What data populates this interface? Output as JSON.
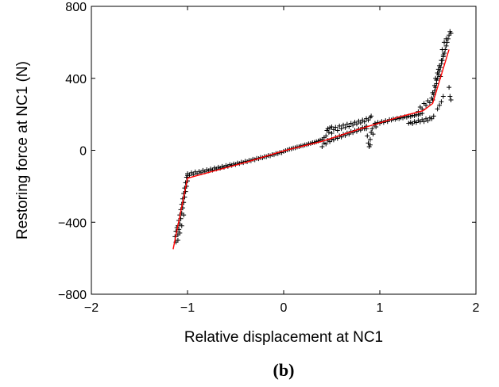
{
  "chart_data": {
    "type": "scatter",
    "title": "",
    "xlabel": "Relative displacement at NC1",
    "ylabel": "Restoring force at NC1 (N)",
    "xlim": [
      -2,
      2
    ],
    "ylim": [
      -800,
      800
    ],
    "xticks": [
      -2,
      -1,
      0,
      1,
      2
    ],
    "xtick_labels": [
      "−2",
      "−1",
      "0",
      "1",
      "2"
    ],
    "yticks": [
      -800,
      -400,
      0,
      400,
      800
    ],
    "ytick_labels": [
      "−800",
      "−400",
      "0",
      "400",
      "800"
    ],
    "grid": false,
    "legend": false,
    "panel_label": "(b)",
    "series": [
      {
        "marker": "+",
        "color": "#000000",
        "points": [
          [
            -1.13,
            -480
          ],
          [
            -1.12,
            -450
          ],
          [
            -1.11,
            -430
          ],
          [
            -1.1,
            -470
          ],
          [
            -1.1,
            -420
          ],
          [
            -1.09,
            -390
          ],
          [
            -1.09,
            -440
          ],
          [
            -1.08,
            -360
          ],
          [
            -1.08,
            -410
          ],
          [
            -1.07,
            -330
          ],
          [
            -1.07,
            -380
          ],
          [
            -1.06,
            -300
          ],
          [
            -1.06,
            -350
          ],
          [
            -1.05,
            -270
          ],
          [
            -1.05,
            -320
          ],
          [
            -1.04,
            -240
          ],
          [
            -1.04,
            -290
          ],
          [
            -1.03,
            -210
          ],
          [
            -1.03,
            -260
          ],
          [
            -1.02,
            -180
          ],
          [
            -1.02,
            -230
          ],
          [
            -1.01,
            -150
          ],
          [
            -1.01,
            -200
          ],
          [
            -1.0,
            -140
          ],
          [
            -1.0,
            -170
          ],
          [
            -1.1,
            -500
          ],
          [
            -1.12,
            -510
          ],
          [
            -1.08,
            -460
          ],
          [
            -1.06,
            -420
          ],
          [
            -1.04,
            -360
          ],
          [
            -1.0,
            -130
          ],
          [
            -0.98,
            -140
          ],
          [
            -0.96,
            -125
          ],
          [
            -0.94,
            -135
          ],
          [
            -0.92,
            -120
          ],
          [
            -0.9,
            -130
          ],
          [
            -0.88,
            -118
          ],
          [
            -0.86,
            -125
          ],
          [
            -0.84,
            -112
          ],
          [
            -0.82,
            -120
          ],
          [
            -0.8,
            -108
          ],
          [
            -0.78,
            -114
          ],
          [
            -0.76,
            -104
          ],
          [
            -0.74,
            -110
          ],
          [
            -0.72,
            -98
          ],
          [
            -0.7,
            -104
          ],
          [
            -0.68,
            -94
          ],
          [
            -0.66,
            -99
          ],
          [
            -0.64,
            -90
          ],
          [
            -0.62,
            -94
          ],
          [
            -0.6,
            -85
          ],
          [
            -0.58,
            -89
          ],
          [
            -0.56,
            -80
          ],
          [
            -0.54,
            -84
          ],
          [
            -0.52,
            -76
          ],
          [
            -0.5,
            -79
          ],
          [
            -0.48,
            -71
          ],
          [
            -0.46,
            -74
          ],
          [
            -0.44,
            -66
          ],
          [
            -0.42,
            -69
          ],
          [
            -0.4,
            -61
          ],
          [
            -0.38,
            -64
          ],
          [
            -0.36,
            -56
          ],
          [
            -0.34,
            -58
          ],
          [
            -0.32,
            -50
          ],
          [
            -0.3,
            -53
          ],
          [
            -0.28,
            -45
          ],
          [
            -0.26,
            -47
          ],
          [
            -0.24,
            -40
          ],
          [
            -0.22,
            -42
          ],
          [
            -0.2,
            -35
          ],
          [
            -0.18,
            -36
          ],
          [
            -0.16,
            -29
          ],
          [
            -0.14,
            -31
          ],
          [
            -0.12,
            -24
          ],
          [
            -0.1,
            -25
          ],
          [
            -0.08,
            -18
          ],
          [
            -0.06,
            -19
          ],
          [
            -0.04,
            -12
          ],
          [
            -0.02,
            -13
          ],
          [
            0.0,
            -6
          ],
          [
            0.02,
            -2
          ],
          [
            0.04,
            2
          ],
          [
            0.06,
            6
          ],
          [
            0.08,
            8
          ],
          [
            0.1,
            12
          ],
          [
            0.12,
            14
          ],
          [
            0.14,
            18
          ],
          [
            0.16,
            20
          ],
          [
            0.18,
            24
          ],
          [
            0.2,
            26
          ],
          [
            0.22,
            30
          ],
          [
            0.24,
            32
          ],
          [
            0.26,
            36
          ],
          [
            0.28,
            38
          ],
          [
            0.3,
            42
          ],
          [
            0.32,
            44
          ],
          [
            0.34,
            48
          ],
          [
            0.36,
            52
          ],
          [
            0.38,
            56
          ],
          [
            0.4,
            60
          ],
          [
            0.42,
            70
          ],
          [
            0.44,
            80
          ],
          [
            0.45,
            110
          ],
          [
            0.46,
            120
          ],
          [
            0.47,
            100
          ],
          [
            0.48,
            125
          ],
          [
            0.5,
            95
          ],
          [
            0.5,
            130
          ],
          [
            0.52,
            115
          ],
          [
            0.54,
            128
          ],
          [
            0.56,
            110
          ],
          [
            0.58,
            135
          ],
          [
            0.6,
            120
          ],
          [
            0.62,
            140
          ],
          [
            0.64,
            126
          ],
          [
            0.66,
            145
          ],
          [
            0.68,
            132
          ],
          [
            0.7,
            150
          ],
          [
            0.72,
            140
          ],
          [
            0.74,
            156
          ],
          [
            0.76,
            146
          ],
          [
            0.78,
            162
          ],
          [
            0.8,
            152
          ],
          [
            0.82,
            168
          ],
          [
            0.84,
            158
          ],
          [
            0.86,
            176
          ],
          [
            0.88,
            168
          ],
          [
            0.9,
            182
          ],
          [
            0.91,
            190
          ],
          [
            0.4,
            20
          ],
          [
            0.42,
            40
          ],
          [
            0.44,
            35
          ],
          [
            0.46,
            55
          ],
          [
            0.48,
            48
          ],
          [
            0.5,
            62
          ],
          [
            0.52,
            58
          ],
          [
            0.54,
            72
          ],
          [
            0.56,
            66
          ],
          [
            0.58,
            80
          ],
          [
            0.6,
            74
          ],
          [
            0.62,
            88
          ],
          [
            0.64,
            82
          ],
          [
            0.66,
            96
          ],
          [
            0.68,
            90
          ],
          [
            0.7,
            104
          ],
          [
            0.72,
            98
          ],
          [
            0.74,
            110
          ],
          [
            0.76,
            105
          ],
          [
            0.78,
            118
          ],
          [
            0.8,
            112
          ],
          [
            0.82,
            126
          ],
          [
            0.84,
            120
          ],
          [
            0.86,
            134
          ],
          [
            0.86,
            120
          ],
          [
            0.87,
            80
          ],
          [
            0.88,
            40
          ],
          [
            0.89,
            20
          ],
          [
            0.9,
            60
          ],
          [
            0.9,
            30
          ],
          [
            0.91,
            100
          ],
          [
            0.92,
            120
          ],
          [
            0.93,
            90
          ],
          [
            0.94,
            140
          ],
          [
            0.95,
            150
          ],
          [
            0.96,
            130
          ],
          [
            0.98,
            155
          ],
          [
            1.0,
            150
          ],
          [
            1.02,
            160
          ],
          [
            1.04,
            155
          ],
          [
            1.06,
            165
          ],
          [
            1.08,
            160
          ],
          [
            1.1,
            170
          ],
          [
            1.12,
            168
          ],
          [
            1.14,
            174
          ],
          [
            1.16,
            172
          ],
          [
            1.18,
            178
          ],
          [
            1.2,
            176
          ],
          [
            1.22,
            182
          ],
          [
            1.24,
            180
          ],
          [
            1.26,
            186
          ],
          [
            1.28,
            184
          ],
          [
            1.3,
            190
          ],
          [
            1.32,
            188
          ],
          [
            1.34,
            194
          ],
          [
            1.36,
            192
          ],
          [
            1.38,
            198
          ],
          [
            1.4,
            196
          ],
          [
            1.42,
            202
          ],
          [
            1.44,
            205
          ],
          [
            1.3,
            150
          ],
          [
            1.32,
            155
          ],
          [
            1.34,
            148
          ],
          [
            1.36,
            160
          ],
          [
            1.38,
            154
          ],
          [
            1.4,
            166
          ],
          [
            1.42,
            158
          ],
          [
            1.44,
            170
          ],
          [
            1.46,
            160
          ],
          [
            1.48,
            175
          ],
          [
            1.5,
            165
          ],
          [
            1.52,
            180
          ],
          [
            1.54,
            175
          ],
          [
            1.56,
            190
          ],
          [
            1.4,
            215
          ],
          [
            1.42,
            240
          ],
          [
            1.44,
            230
          ],
          [
            1.46,
            260
          ],
          [
            1.48,
            250
          ],
          [
            1.5,
            275
          ],
          [
            1.52,
            265
          ],
          [
            1.54,
            290
          ],
          [
            1.55,
            280
          ],
          [
            1.56,
            310
          ],
          [
            1.57,
            330
          ],
          [
            1.58,
            350
          ],
          [
            1.59,
            370
          ],
          [
            1.6,
            400
          ],
          [
            1.61,
            420
          ],
          [
            1.62,
            440
          ],
          [
            1.63,
            460
          ],
          [
            1.64,
            480
          ],
          [
            1.65,
            500
          ],
          [
            1.66,
            520
          ],
          [
            1.67,
            540
          ],
          [
            1.68,
            560
          ],
          [
            1.69,
            580
          ],
          [
            1.7,
            600
          ],
          [
            1.71,
            620
          ],
          [
            1.72,
            640
          ],
          [
            1.73,
            660
          ],
          [
            1.74,
            650
          ],
          [
            1.58,
            400
          ],
          [
            1.6,
            430
          ],
          [
            1.62,
            470
          ],
          [
            1.64,
            500
          ],
          [
            1.66,
            530
          ],
          [
            1.55,
            320
          ],
          [
            1.57,
            360
          ],
          [
            1.59,
            390
          ],
          [
            1.61,
            450
          ],
          [
            1.63,
            410
          ],
          [
            1.65,
            560
          ],
          [
            1.67,
            600
          ],
          [
            1.69,
            620
          ],
          [
            1.72,
            350
          ],
          [
            1.73,
            300
          ],
          [
            1.74,
            280
          ],
          [
            1.6,
            230
          ],
          [
            1.62,
            250
          ],
          [
            1.64,
            270
          ],
          [
            1.66,
            300
          ]
        ]
      },
      {
        "type": "line",
        "color": "#ff0000",
        "points": [
          [
            -1.15,
            -550
          ],
          [
            -1.0,
            -155
          ],
          [
            -0.4,
            -68
          ],
          [
            0.0,
            -3
          ],
          [
            0.4,
            50
          ],
          [
            0.8,
            120
          ],
          [
            1.2,
            185
          ],
          [
            1.45,
            220
          ],
          [
            1.55,
            260
          ],
          [
            1.72,
            560
          ]
        ]
      }
    ]
  }
}
